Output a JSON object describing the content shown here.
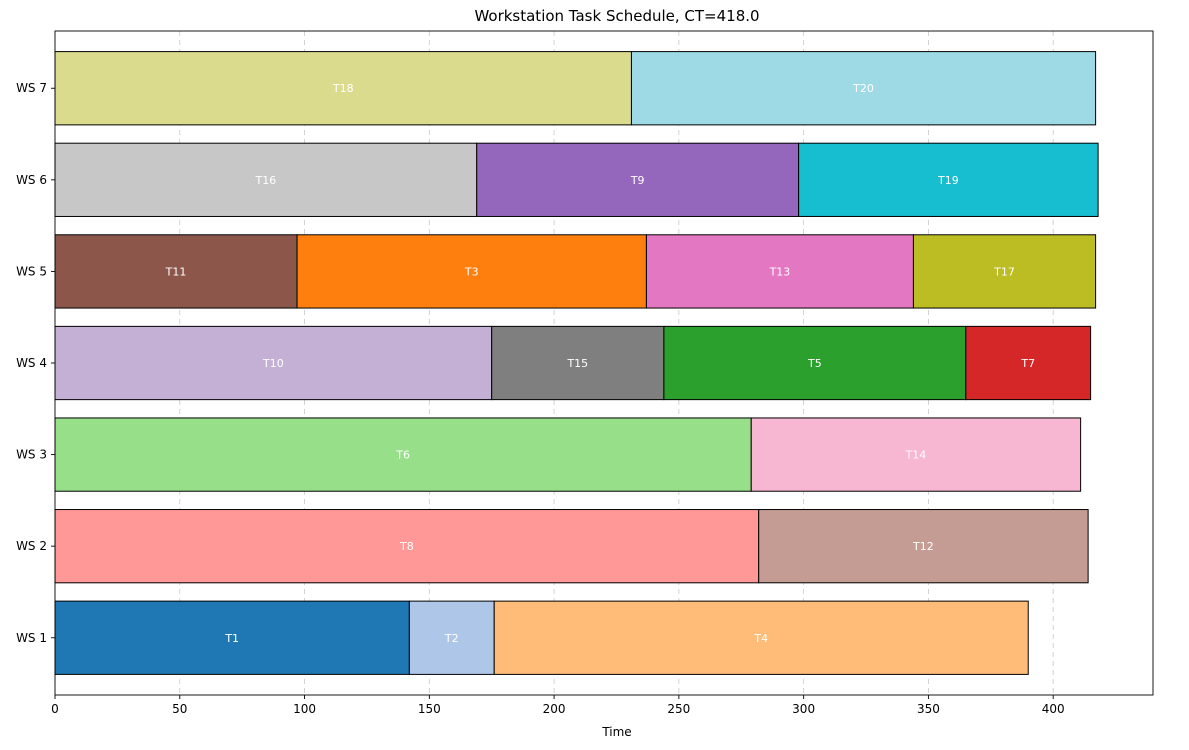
{
  "chart_data": {
    "type": "gantt",
    "title": "Workstation Task Schedule, CT=418.0",
    "xlabel": "Time",
    "ylabel": "",
    "xlim": [
      0,
      440
    ],
    "xticks": [
      0,
      50,
      100,
      150,
      200,
      250,
      300,
      350,
      400
    ],
    "grid": "x-dashed",
    "rows": [
      {
        "label": "WS 1",
        "tasks": [
          {
            "name": "T1",
            "start": 0,
            "end": 142,
            "color": "#1f77b4"
          },
          {
            "name": "T2",
            "start": 142,
            "end": 176,
            "color": "#aec7e8"
          },
          {
            "name": "T4",
            "start": 176,
            "end": 390,
            "color": "#ffbb78"
          }
        ]
      },
      {
        "label": "WS 2",
        "tasks": [
          {
            "name": "T8",
            "start": 0,
            "end": 282,
            "color": "#ff9896"
          },
          {
            "name": "T12",
            "start": 282,
            "end": 414,
            "color": "#c49c94"
          }
        ]
      },
      {
        "label": "WS 3",
        "tasks": [
          {
            "name": "T6",
            "start": 0,
            "end": 279,
            "color": "#98df8a"
          },
          {
            "name": "T14",
            "start": 279,
            "end": 411,
            "color": "#f7b6d2"
          }
        ]
      },
      {
        "label": "WS 4",
        "tasks": [
          {
            "name": "T10",
            "start": 0,
            "end": 175,
            "color": "#c5b0d5"
          },
          {
            "name": "T15",
            "start": 175,
            "end": 244,
            "color": "#7f7f7f"
          },
          {
            "name": "T5",
            "start": 244,
            "end": 365,
            "color": "#2ca02c"
          },
          {
            "name": "T7",
            "start": 365,
            "end": 415,
            "color": "#d62728"
          }
        ]
      },
      {
        "label": "WS 5",
        "tasks": [
          {
            "name": "T11",
            "start": 0,
            "end": 97,
            "color": "#8c564b"
          },
          {
            "name": "T3",
            "start": 97,
            "end": 237,
            "color": "#ff7f0e"
          },
          {
            "name": "T13",
            "start": 237,
            "end": 344,
            "color": "#e377c2"
          },
          {
            "name": "T17",
            "start": 344,
            "end": 417,
            "color": "#bcbd22"
          }
        ]
      },
      {
        "label": "WS 6",
        "tasks": [
          {
            "name": "T16",
            "start": 0,
            "end": 169,
            "color": "#c7c7c7"
          },
          {
            "name": "T9",
            "start": 169,
            "end": 298,
            "color": "#9467bd"
          },
          {
            "name": "T19",
            "start": 298,
            "end": 418,
            "color": "#17becf"
          }
        ]
      },
      {
        "label": "WS 7",
        "tasks": [
          {
            "name": "T18",
            "start": 0,
            "end": 231,
            "color": "#dbdb8d"
          },
          {
            "name": "T20",
            "start": 231,
            "end": 417,
            "color": "#9edae5"
          }
        ]
      }
    ]
  }
}
